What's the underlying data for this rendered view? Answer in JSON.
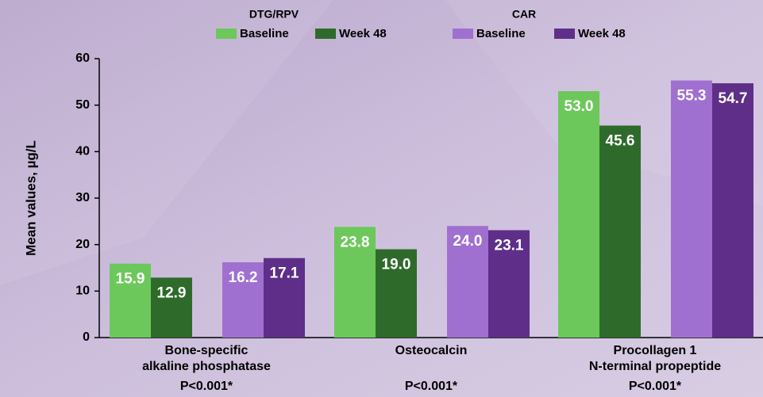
{
  "chart_data": {
    "type": "bar",
    "ylabel": "Mean values, µg/L",
    "legend_groups": [
      "DTG/RPV",
      "CAR"
    ],
    "categories": [
      [
        "Bone-specific",
        "alkaline phosphatase"
      ],
      [
        "Osteocalcin"
      ],
      [
        "Procollagen 1",
        "N-terminal propeptide"
      ]
    ],
    "annotations": [
      "P<0.001*",
      "P<0.001*",
      "P<0.001*"
    ],
    "series": [
      {
        "name": "Baseline",
        "color": "#6cc85a",
        "values": [
          15.9,
          23.8,
          53.0
        ],
        "value_labels": [
          "15.9",
          "23.8",
          "53.0"
        ]
      },
      {
        "name": "Week 48",
        "color": "#2e6b2a",
        "values": [
          12.9,
          19.0,
          45.6
        ],
        "value_labels": [
          "12.9",
          "19.0",
          "45.6"
        ]
      },
      {
        "name": "Baseline",
        "color": "#a070d0",
        "values": [
          16.2,
          24.0,
          55.3
        ],
        "value_labels": [
          "16.2",
          "24.0",
          "55.3"
        ]
      },
      {
        "name": "Week 48",
        "color": "#5e2e88",
        "values": [
          17.1,
          23.1,
          54.7
        ],
        "value_labels": [
          "17.1",
          "23.1",
          "54.7"
        ]
      }
    ],
    "ylim": [
      0,
      60
    ],
    "yticks": [
      0,
      10,
      20,
      30,
      40,
      50,
      60
    ]
  }
}
